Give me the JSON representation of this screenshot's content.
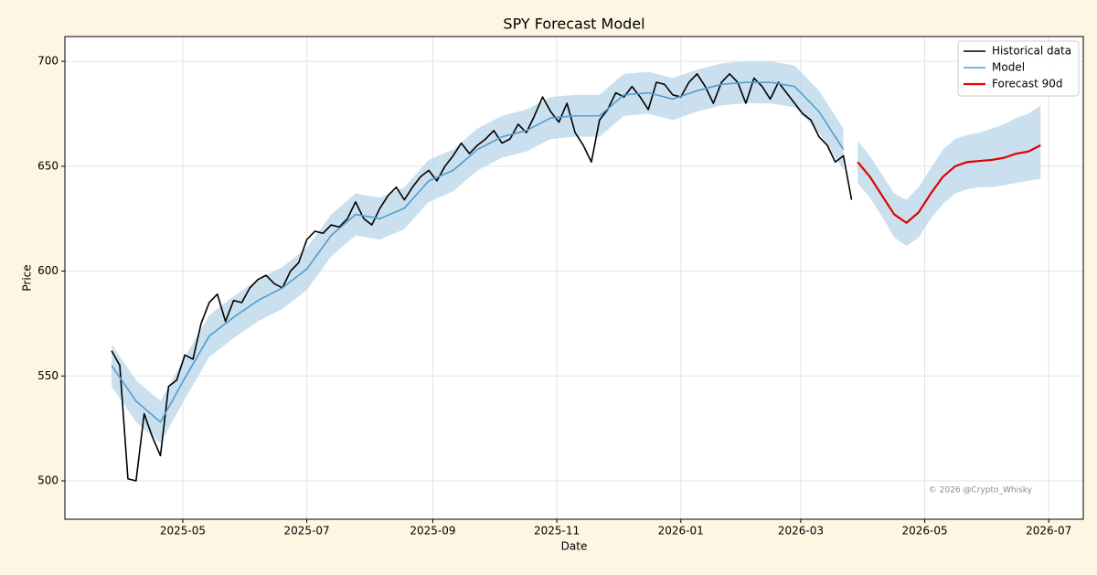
{
  "chart_data": {
    "type": "line",
    "title": "SPY Forecast Model",
    "xlabel": "Date",
    "ylabel": "Price",
    "annotation": "© 2026 @Crypto_Whisky",
    "grid": true,
    "legend": "upper right",
    "xlim": [
      20151,
      20652
    ],
    "ylim": [
      481.7,
      711.8
    ],
    "xticks": [
      {
        "value": 20209,
        "label": "2025-05"
      },
      {
        "value": 20270,
        "label": "2025-07"
      },
      {
        "value": 20332,
        "label": "2025-09"
      },
      {
        "value": 20393,
        "label": "2025-11"
      },
      {
        "value": 20454,
        "label": "2026-01"
      },
      {
        "value": 20513,
        "label": "2026-03"
      },
      {
        "value": 20574,
        "label": "2026-05"
      },
      {
        "value": 20635,
        "label": "2026-07"
      }
    ],
    "yticks": [
      500,
      550,
      600,
      650,
      700
    ],
    "series": [
      {
        "name": "Historical data",
        "color": "#000000",
        "x": [
          20174,
          20178,
          20182,
          20186,
          20190,
          20194,
          20198,
          20202,
          20206,
          20210,
          20214,
          20218,
          20222,
          20226,
          20230,
          20234,
          20238,
          20242,
          20246,
          20250,
          20254,
          20258,
          20262,
          20266,
          20270,
          20274,
          20278,
          20282,
          20286,
          20290,
          20294,
          20298,
          20302,
          20306,
          20310,
          20314,
          20318,
          20322,
          20326,
          20330,
          20334,
          20338,
          20342,
          20346,
          20350,
          20354,
          20358,
          20362,
          20366,
          20370,
          20374,
          20378,
          20382,
          20386,
          20390,
          20394,
          20398,
          20402,
          20406,
          20410,
          20414,
          20418,
          20422,
          20426,
          20430,
          20434,
          20438,
          20442,
          20446,
          20450,
          20454,
          20458,
          20462,
          20466,
          20470,
          20474,
          20478,
          20482,
          20486,
          20490,
          20494,
          20498,
          20502,
          20506,
          20510,
          20514,
          20518,
          20522,
          20526,
          20530,
          20534,
          20538
        ],
        "values": [
          562,
          555,
          501,
          500,
          532,
          521,
          512,
          545,
          548,
          560,
          558,
          575,
          585,
          589,
          576,
          586,
          585,
          592,
          596,
          598,
          594,
          592,
          600,
          604,
          615,
          619,
          618,
          622,
          621,
          625,
          633,
          625,
          622,
          630,
          636,
          640,
          634,
          640,
          645,
          648,
          643,
          650,
          655,
          661,
          656,
          660,
          663,
          667,
          661,
          663,
          670,
          666,
          674,
          683,
          676,
          671,
          680,
          666,
          660,
          652,
          672,
          677,
          685,
          683,
          688,
          683,
          677,
          690,
          689,
          684,
          683,
          690,
          694,
          688,
          680,
          690,
          694,
          690,
          680,
          692,
          688,
          682,
          690,
          685,
          680,
          675,
          672,
          664,
          660,
          652,
          655,
          634
        ]
      },
      {
        "name": "Model",
        "color": "#4f9dd0",
        "x": [
          20174,
          20186,
          20198,
          20210,
          20222,
          20234,
          20246,
          20258,
          20270,
          20282,
          20294,
          20306,
          20318,
          20330,
          20342,
          20354,
          20366,
          20378,
          20390,
          20402,
          20414,
          20426,
          20438,
          20450,
          20462,
          20474,
          20486,
          20498,
          20510,
          20522,
          20534
        ],
        "values": [
          555,
          538,
          528,
          549,
          569,
          578,
          586,
          592,
          601,
          617,
          627,
          625,
          630,
          643,
          648,
          658,
          664,
          667,
          673,
          674,
          674,
          684,
          685,
          682,
          686,
          689,
          690,
          690,
          688,
          676,
          658
        ],
        "lower": [
          545,
          528,
          518,
          539,
          559,
          568,
          576,
          582,
          591,
          607,
          617,
          615,
          620,
          633,
          638,
          648,
          654,
          657,
          663,
          664,
          664,
          674,
          675,
          672,
          676,
          679,
          680,
          680,
          678,
          666,
          648
        ],
        "upper": [
          565,
          548,
          538,
          559,
          579,
          588,
          596,
          602,
          611,
          627,
          637,
          635,
          640,
          653,
          658,
          668,
          674,
          677,
          683,
          684,
          684,
          694,
          695,
          692,
          696,
          699,
          700,
          700,
          698,
          686,
          668
        ]
      },
      {
        "name": "Forecast 90d",
        "color": "#e00000",
        "x": [
          20541,
          20547,
          20553,
          20559,
          20565,
          20571,
          20577,
          20583,
          20589,
          20595,
          20601,
          20607,
          20613,
          20619,
          20625,
          20631
        ],
        "values": [
          652,
          645,
          636,
          627,
          623,
          628,
          637,
          645,
          650,
          652,
          652.5,
          653,
          654,
          656,
          657,
          660
        ],
        "lower": [
          642,
          635,
          626,
          616,
          612,
          616,
          625,
          632,
          637,
          639,
          640,
          640,
          641,
          642,
          643,
          644
        ],
        "upper": [
          662,
          655,
          646,
          637,
          634,
          640,
          649,
          658,
          663,
          665,
          666,
          668,
          670,
          673,
          675,
          679
        ]
      }
    ]
  }
}
